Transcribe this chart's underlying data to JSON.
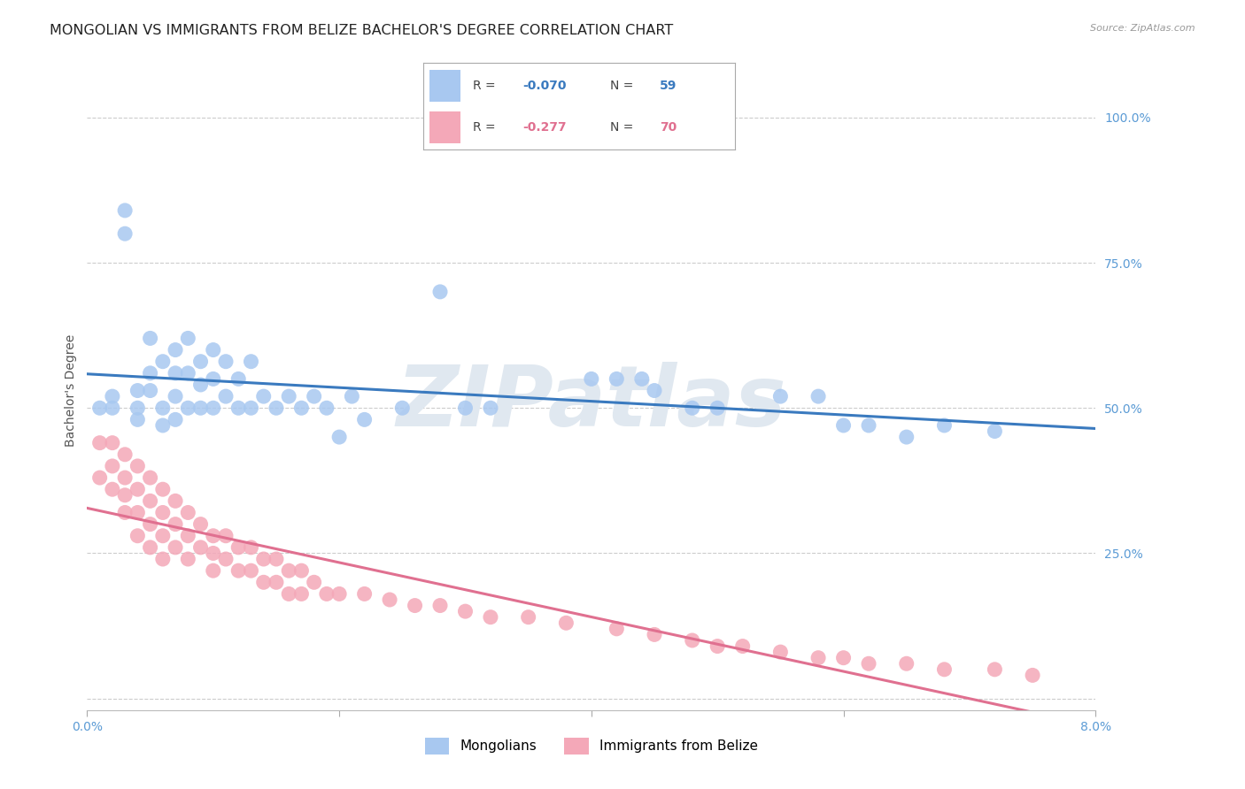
{
  "title": "MONGOLIAN VS IMMIGRANTS FROM BELIZE BACHELOR'S DEGREE CORRELATION CHART",
  "source": "Source: ZipAtlas.com",
  "ylabel": "Bachelor's Degree",
  "ytick_labels": [
    "",
    "25.0%",
    "50.0%",
    "75.0%",
    "100.0%"
  ],
  "ytick_values": [
    0.0,
    0.25,
    0.5,
    0.75,
    1.0
  ],
  "xlim": [
    0.0,
    0.08
  ],
  "ylim": [
    -0.02,
    1.08
  ],
  "mongolian_color": "#a8c8f0",
  "belize_color": "#f4a8b8",
  "mongolian_line_color": "#3a7abf",
  "belize_line_color": "#e07090",
  "watermark_text": "ZIPatlas",
  "watermark_color": "#e0e8f0",
  "background_color": "#ffffff",
  "grid_color": "#cccccc",
  "tick_color": "#5b9bd5",
  "title_fontsize": 11.5,
  "axis_label_fontsize": 10,
  "tick_fontsize": 10,
  "legend_box_color": "#aaaaaa",
  "mon_R_text": "R = ",
  "mon_R_val": "-0.070",
  "mon_N_text": "N = ",
  "mon_N_val": "59",
  "bel_R_text": "R = ",
  "bel_R_val": "-0.277",
  "bel_N_text": "N = ",
  "bel_N_val": "70",
  "mongolian_x": [
    0.001,
    0.002,
    0.002,
    0.003,
    0.003,
    0.004,
    0.004,
    0.004,
    0.005,
    0.005,
    0.005,
    0.006,
    0.006,
    0.006,
    0.007,
    0.007,
    0.007,
    0.007,
    0.008,
    0.008,
    0.008,
    0.009,
    0.009,
    0.009,
    0.01,
    0.01,
    0.01,
    0.011,
    0.011,
    0.012,
    0.012,
    0.013,
    0.013,
    0.014,
    0.015,
    0.016,
    0.017,
    0.018,
    0.019,
    0.02,
    0.021,
    0.022,
    0.025,
    0.028,
    0.03,
    0.032,
    0.04,
    0.042,
    0.044,
    0.045,
    0.048,
    0.05,
    0.055,
    0.058,
    0.06,
    0.062,
    0.065,
    0.068,
    0.072
  ],
  "mongolian_y": [
    0.5,
    0.52,
    0.5,
    0.8,
    0.84,
    0.5,
    0.48,
    0.53,
    0.56,
    0.62,
    0.53,
    0.58,
    0.5,
    0.47,
    0.6,
    0.56,
    0.52,
    0.48,
    0.62,
    0.56,
    0.5,
    0.58,
    0.54,
    0.5,
    0.6,
    0.55,
    0.5,
    0.58,
    0.52,
    0.55,
    0.5,
    0.58,
    0.5,
    0.52,
    0.5,
    0.52,
    0.5,
    0.52,
    0.5,
    0.45,
    0.52,
    0.48,
    0.5,
    0.7,
    0.5,
    0.5,
    0.55,
    0.55,
    0.55,
    0.53,
    0.5,
    0.5,
    0.52,
    0.52,
    0.47,
    0.47,
    0.45,
    0.47,
    0.46
  ],
  "belize_x": [
    0.001,
    0.001,
    0.002,
    0.002,
    0.002,
    0.003,
    0.003,
    0.003,
    0.003,
    0.004,
    0.004,
    0.004,
    0.004,
    0.005,
    0.005,
    0.005,
    0.005,
    0.006,
    0.006,
    0.006,
    0.006,
    0.007,
    0.007,
    0.007,
    0.008,
    0.008,
    0.008,
    0.009,
    0.009,
    0.01,
    0.01,
    0.01,
    0.011,
    0.011,
    0.012,
    0.012,
    0.013,
    0.013,
    0.014,
    0.014,
    0.015,
    0.015,
    0.016,
    0.016,
    0.017,
    0.017,
    0.018,
    0.019,
    0.02,
    0.022,
    0.024,
    0.026,
    0.028,
    0.03,
    0.032,
    0.035,
    0.038,
    0.042,
    0.045,
    0.048,
    0.05,
    0.052,
    0.055,
    0.058,
    0.06,
    0.062,
    0.065,
    0.068,
    0.072,
    0.075
  ],
  "belize_y": [
    0.44,
    0.38,
    0.44,
    0.4,
    0.36,
    0.42,
    0.38,
    0.35,
    0.32,
    0.4,
    0.36,
    0.32,
    0.28,
    0.38,
    0.34,
    0.3,
    0.26,
    0.36,
    0.32,
    0.28,
    0.24,
    0.34,
    0.3,
    0.26,
    0.32,
    0.28,
    0.24,
    0.3,
    0.26,
    0.28,
    0.25,
    0.22,
    0.28,
    0.24,
    0.26,
    0.22,
    0.26,
    0.22,
    0.24,
    0.2,
    0.24,
    0.2,
    0.22,
    0.18,
    0.22,
    0.18,
    0.2,
    0.18,
    0.18,
    0.18,
    0.17,
    0.16,
    0.16,
    0.15,
    0.14,
    0.14,
    0.13,
    0.12,
    0.11,
    0.1,
    0.09,
    0.09,
    0.08,
    0.07,
    0.07,
    0.06,
    0.06,
    0.05,
    0.05,
    0.04
  ]
}
